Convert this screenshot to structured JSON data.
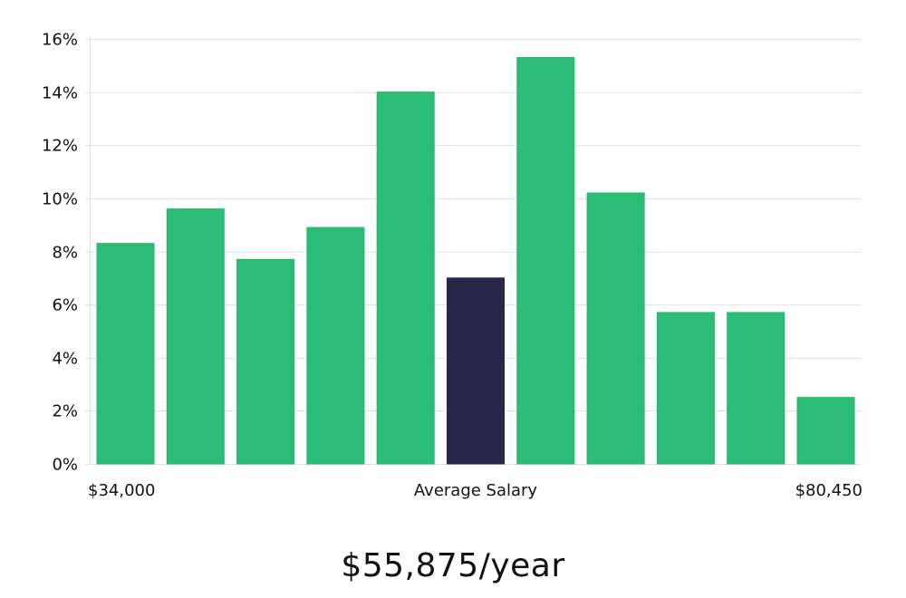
{
  "chart_data": {
    "type": "bar",
    "values": [
      8.3,
      9.6,
      7.7,
      8.9,
      14.0,
      7.0,
      15.3,
      10.2,
      5.7,
      5.7,
      2.5
    ],
    "highlight_index": 5,
    "ylim": [
      0,
      16
    ],
    "yticks": [
      0,
      2,
      4,
      6,
      8,
      10,
      12,
      14,
      16
    ],
    "ytick_suffix": "%",
    "x_left_label": "$34,000",
    "x_center_label": "Average Salary",
    "x_right_label": "$80,450",
    "grid": true,
    "colors": {
      "bar": "#2bbd76",
      "bar_stroke": "#22b56c",
      "highlight": "#29264a",
      "grid": "#e1e1e6"
    }
  },
  "salary": {
    "headline": "$55,875/year"
  }
}
